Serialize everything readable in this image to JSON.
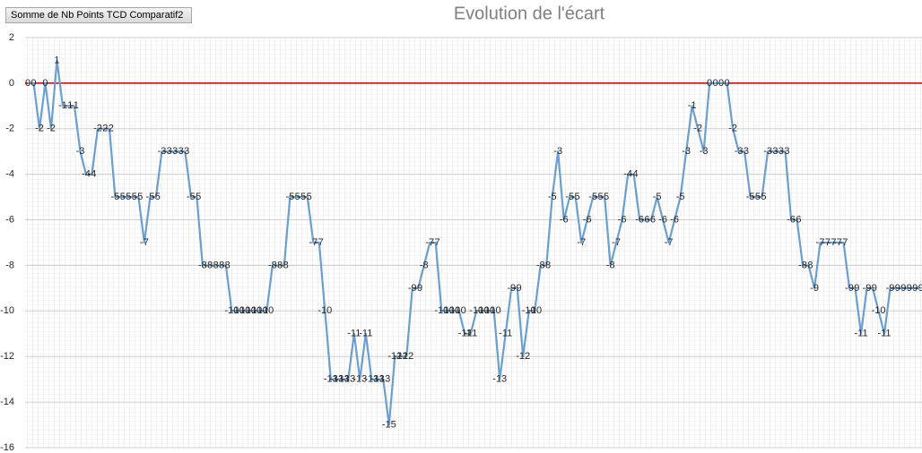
{
  "chart_data": {
    "type": "line",
    "title": "Evolution de l'écart",
    "field_button": "Somme  de Nb Points TCD Comparatif2",
    "color": "#6a9fcf",
    "reference_line": {
      "value": 0,
      "color": "#c00000"
    },
    "ylim": [
      -16,
      2
    ],
    "yticks": [
      -16,
      -14,
      -12,
      -10,
      -8,
      -6,
      -4,
      -2,
      0,
      2
    ],
    "grid": true,
    "values": [
      0,
      0,
      -2,
      0,
      -2,
      1,
      -1,
      -1,
      -1,
      -3,
      -4,
      -4,
      -2,
      -2,
      -2,
      -5,
      -5,
      -5,
      -5,
      -5,
      -7,
      -5,
      -5,
      -3,
      -3,
      -3,
      -3,
      -3,
      -5,
      -5,
      -8,
      -8,
      -8,
      -8,
      -8,
      -10,
      -10,
      -10,
      -10,
      -10,
      -10,
      -10,
      -8,
      -8,
      -8,
      -5,
      -5,
      -5,
      -5,
      -7,
      -7,
      -10,
      -13,
      -13,
      -13,
      -13,
      -11,
      -13,
      -11,
      -13,
      -13,
      -13,
      -15,
      -12,
      -12,
      -12,
      -9,
      -9,
      -8,
      -7,
      -7,
      -10,
      -10,
      -10,
      -10,
      -11,
      -11,
      -10,
      -10,
      -10,
      -10,
      -13,
      -11,
      -9,
      -9,
      -12,
      -10,
      -10,
      -8,
      -8,
      -5,
      -3,
      -6,
      -5,
      -5,
      -7,
      -6,
      -5,
      -5,
      -5,
      -8,
      -7,
      -6,
      -4,
      -4,
      -6,
      -6,
      -6,
      -5,
      -6,
      -7,
      -6,
      -5,
      -3,
      -1,
      -2,
      -3,
      0,
      0,
      0,
      0,
      -2,
      -3,
      -3,
      -5,
      -5,
      -5,
      -3,
      -3,
      -3,
      -3,
      -6,
      -6,
      -8,
      -8,
      -9,
      -7,
      -7,
      -7,
      -7,
      -7,
      -9,
      -9,
      -11,
      -9,
      -9,
      -10,
      -11,
      -9,
      -9,
      -9,
      -9,
      -9,
      -9
    ]
  }
}
